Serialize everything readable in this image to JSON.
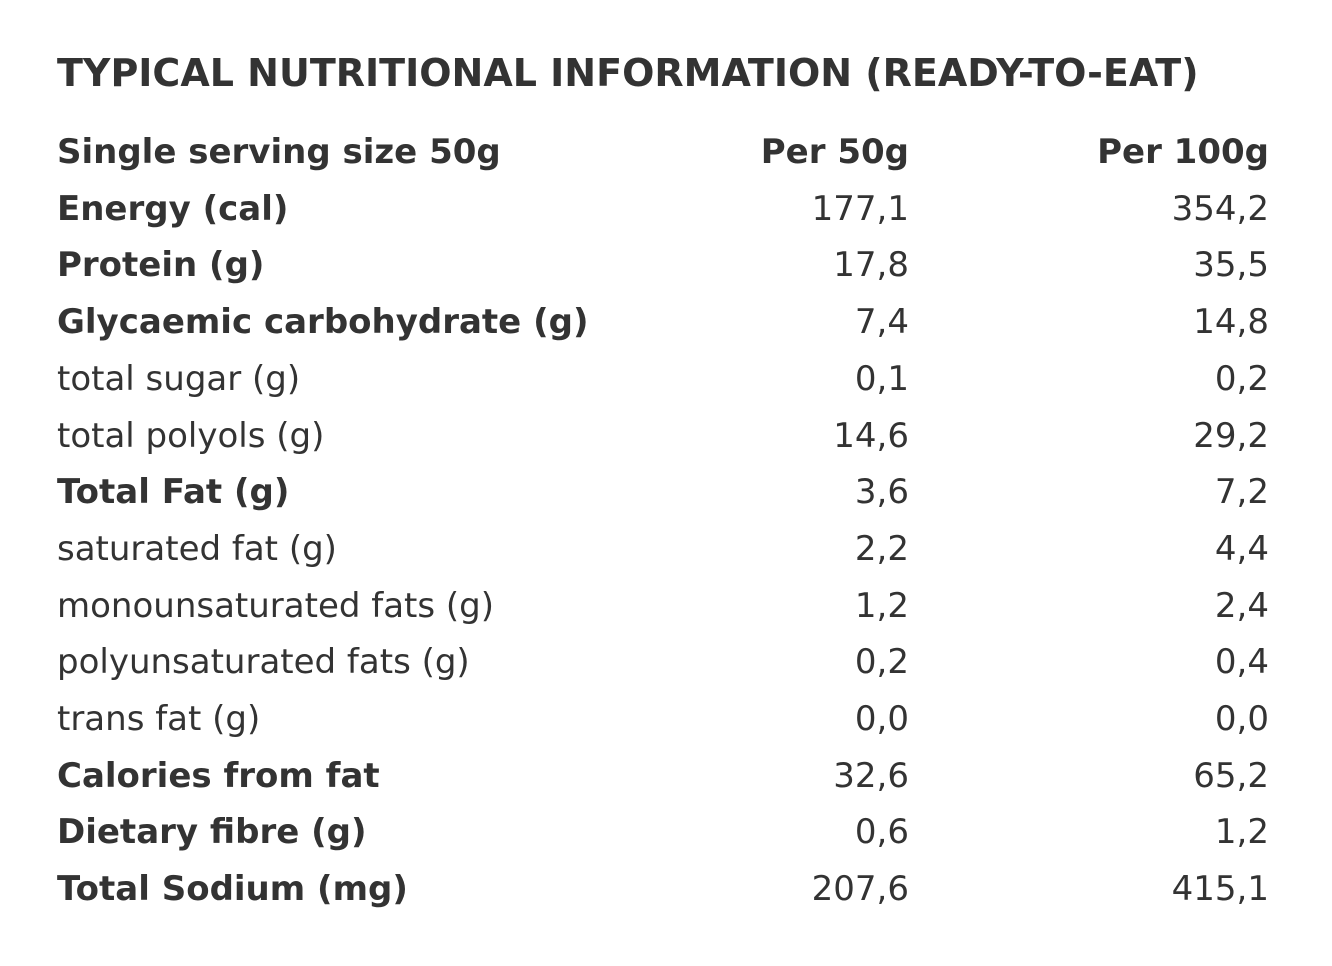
{
  "title": "TYPICAL NUTRITIONAL INFORMATION (READY-TO-EAT)",
  "header": {
    "label": "Single serving size 50g",
    "per50": "Per 50g",
    "per100": "Per 100g"
  },
  "rows": [
    {
      "label": "Energy (cal)",
      "per50": "177,1",
      "per100": "354,2",
      "bold": true
    },
    {
      "label": "Protein (g)",
      "per50": "17,8",
      "per100": "35,5",
      "bold": true
    },
    {
      "label": "Glycaemic carbohydrate (g)",
      "per50": "7,4",
      "per100": "14,8",
      "bold": true
    },
    {
      "label": "total sugar (g)",
      "per50": "0,1",
      "per100": "0,2",
      "bold": false
    },
    {
      "label": "total polyols (g)",
      "per50": "14,6",
      "per100": "29,2",
      "bold": false
    },
    {
      "label": "Total Fat (g)",
      "per50": "3,6",
      "per100": "7,2",
      "bold": true
    },
    {
      "label": "saturated fat (g)",
      "per50": "2,2",
      "per100": "4,4",
      "bold": false
    },
    {
      "label": "monounsaturated fats (g)",
      "per50": "1,2",
      "per100": "2,4",
      "bold": false
    },
    {
      "label": "polyunsaturated fats (g)",
      "per50": "0,2",
      "per100": "0,4",
      "bold": false
    },
    {
      "label": "trans fat (g)",
      "per50": "0,0",
      "per100": "0,0",
      "bold": false
    },
    {
      "label": "Calories from fat",
      "per50": "32,6",
      "per100": "65,2",
      "bold": true
    },
    {
      "label": "Dietary fibre (g)",
      "per50": "0,6",
      "per100": "1,2",
      "bold": true
    },
    {
      "label": "Total Sodium (mg)",
      "per50": "207,6",
      "per100": "415,1",
      "bold": true
    }
  ],
  "colors": {
    "text": "#333333",
    "background": "#ffffff"
  }
}
